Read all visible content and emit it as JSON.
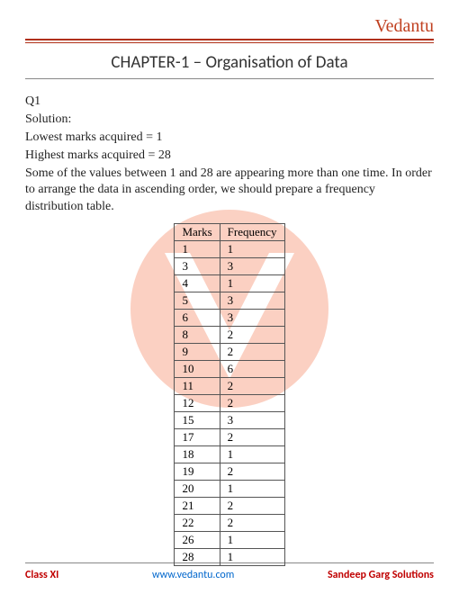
{
  "brand": "Vedantu",
  "chapter_prefix": "CHAPTER-1 – ",
  "chapter_name": "Organisation of Data",
  "body": {
    "q": "Q1",
    "sol": "Solution:",
    "line1": "Lowest marks acquired = 1",
    "line2": "Highest marks acquired = 28",
    "line3": "Some of the values between 1 and 28 are appearing more than one time. In order to arrange the data in ascending order, we should prepare a frequency distribution table."
  },
  "table": {
    "head_col1": "Marks",
    "head_col2": "Frequency",
    "rows": [
      {
        "m": "1",
        "f": "1"
      },
      {
        "m": "3",
        "f": "3"
      },
      {
        "m": "4",
        "f": "1"
      },
      {
        "m": "5",
        "f": "3"
      },
      {
        "m": "6",
        "f": "3"
      },
      {
        "m": "8",
        "f": "2"
      },
      {
        "m": "9",
        "f": "2"
      },
      {
        "m": "10",
        "f": "6"
      },
      {
        "m": "11",
        "f": "2"
      },
      {
        "m": "12",
        "f": "2"
      },
      {
        "m": "15",
        "f": "3"
      },
      {
        "m": "17",
        "f": "2"
      },
      {
        "m": "18",
        "f": "1"
      },
      {
        "m": "19",
        "f": "2"
      },
      {
        "m": "20",
        "f": "1"
      },
      {
        "m": "21",
        "f": "2"
      },
      {
        "m": "22",
        "f": "2"
      },
      {
        "m": "26",
        "f": "1"
      },
      {
        "m": "28",
        "f": "1"
      }
    ]
  },
  "footer": {
    "left": "Class XI",
    "center": "www.vedantu.com",
    "right": "Sandeep Garg Solutions"
  },
  "colors": {
    "brand": "#c04020",
    "rule": "#b03018",
    "link": "#0066cc",
    "footer_accent": "#c00000",
    "watermark": "#f15a29"
  }
}
